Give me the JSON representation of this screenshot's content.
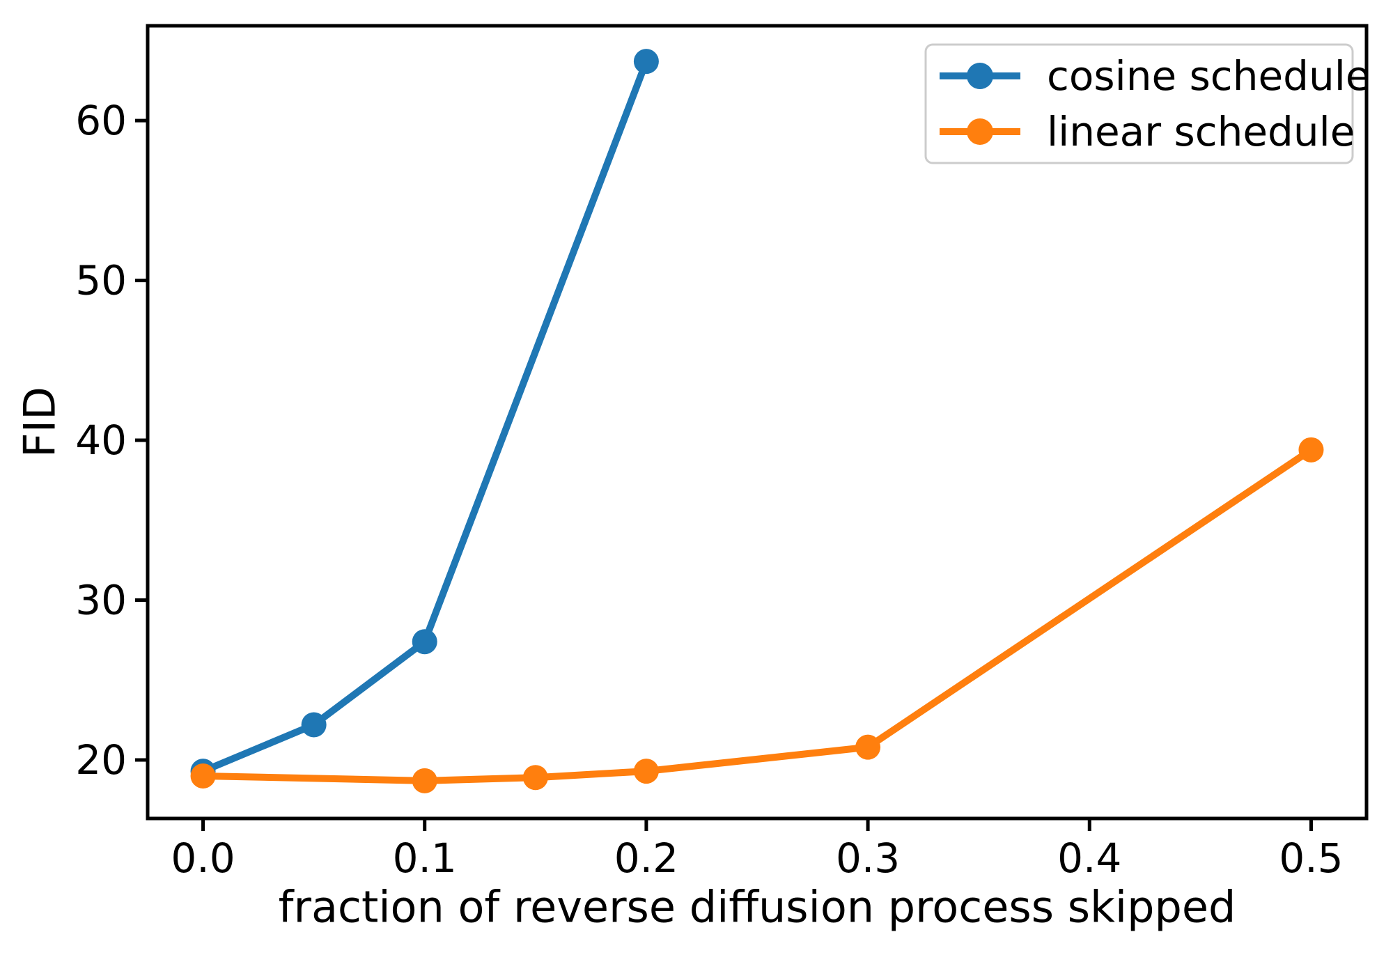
{
  "chart_data": {
    "type": "line",
    "title": "",
    "xlabel": "fraction of reverse diffusion process skipped",
    "ylabel": "FID",
    "xlim": [
      -0.025,
      0.525
    ],
    "ylim": [
      16.34,
      65.93
    ],
    "grid": false,
    "x_ticks": {
      "values": [
        0.0,
        0.1,
        0.2,
        0.3,
        0.4,
        0.5
      ],
      "labels": [
        "0.0",
        "0.1",
        "0.2",
        "0.3",
        "0.4",
        "0.5"
      ]
    },
    "y_ticks": {
      "values": [
        20,
        30,
        40,
        50,
        60
      ],
      "labels": [
        "20",
        "30",
        "40",
        "50",
        "60"
      ]
    },
    "legend": {
      "position": "upper right",
      "entries": [
        "cosine schedule",
        "linear schedule"
      ]
    },
    "series": [
      {
        "name": "cosine schedule",
        "color": "#1f77b4",
        "marker": "circle",
        "x": [
          0.0,
          0.05,
          0.1,
          0.2
        ],
        "y": [
          19.3,
          22.2,
          27.4,
          63.7
        ]
      },
      {
        "name": "linear schedule",
        "color": "#ff7f0e",
        "marker": "circle",
        "x": [
          0.0,
          0.1,
          0.15,
          0.2,
          0.3,
          0.5
        ],
        "y": [
          19.0,
          18.7,
          18.9,
          19.3,
          20.8,
          39.4
        ]
      }
    ]
  },
  "colors": {
    "axis": "#000000",
    "text": "#000000",
    "legend_border": "#cccccc",
    "background": "#ffffff"
  }
}
